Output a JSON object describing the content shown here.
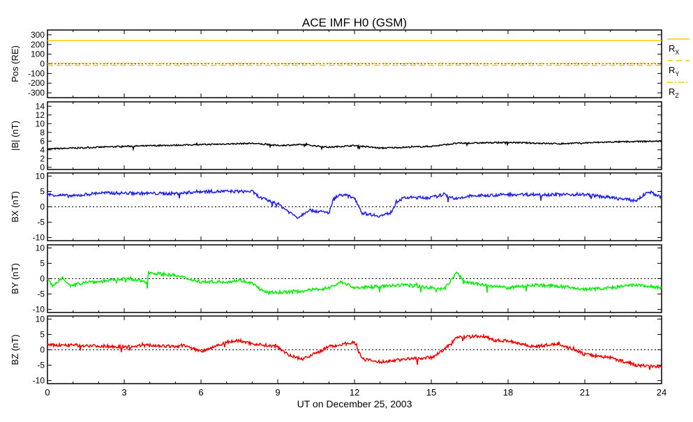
{
  "chart_data": [
    {
      "type": "line",
      "title": "ACE IMF H0 (GSM)",
      "xlabel": "UT on December 25, 2003",
      "ylabel": "Pos (RE)",
      "ylim": [
        -350,
        350
      ],
      "yticks": [
        300,
        200,
        100,
        0,
        -100,
        -200,
        -300
      ],
      "series": [
        {
          "name": "RX",
          "color": "#ffcc00",
          "style": "solid",
          "knots": [
            [
              0,
              240
            ],
            [
              24,
              240
            ]
          ]
        },
        {
          "name": "RY",
          "color": "#ffcc00",
          "style": "dashed",
          "knots": [
            [
              0,
              -15
            ],
            [
              24,
              -15
            ]
          ]
        },
        {
          "name": "RZ",
          "color": "#ffcc00",
          "style": "dashdot",
          "knots": [
            [
              0,
              5
            ],
            [
              24,
              5
            ]
          ]
        }
      ]
    },
    {
      "type": "line",
      "ylabel": "|B| (nT)",
      "ylim": [
        -0.5,
        15
      ],
      "yticks": [
        14,
        12,
        10,
        8,
        6,
        4,
        2,
        0
      ],
      "zero_line": false,
      "series": [
        {
          "name": "|B|",
          "color": "#000000",
          "knots": [
            [
              0,
              4.2
            ],
            [
              3,
              4.8
            ],
            [
              6,
              5.2
            ],
            [
              8,
              5.5
            ],
            [
              9,
              5
            ],
            [
              10,
              5.2
            ],
            [
              11,
              4.6
            ],
            [
              12,
              5
            ],
            [
              13,
              4.4
            ],
            [
              15,
              4.8
            ],
            [
              16,
              5.5
            ],
            [
              18,
              5.7
            ],
            [
              20,
              5.4
            ],
            [
              22,
              5.8
            ],
            [
              24,
              6
            ]
          ]
        }
      ]
    },
    {
      "type": "line",
      "ylabel": "BX (nT)",
      "ylim": [
        -11,
        11
      ],
      "yticks": [
        10,
        5,
        0,
        -5,
        -10
      ],
      "zero_line": true,
      "series": [
        {
          "name": "BX",
          "color": "#2020ee",
          "knots": [
            [
              0,
              4
            ],
            [
              1,
              3.5
            ],
            [
              2,
              4.5
            ],
            [
              5,
              4.3
            ],
            [
              6,
              5
            ],
            [
              8,
              5
            ],
            [
              8.3,
              3
            ],
            [
              9,
              1
            ],
            [
              9.5,
              -2
            ],
            [
              9.8,
              -3.5
            ],
            [
              10.2,
              -1
            ],
            [
              11,
              -2
            ],
            [
              11.2,
              3
            ],
            [
              11.5,
              4
            ],
            [
              12,
              3
            ],
            [
              12.3,
              -2
            ],
            [
              13,
              -3
            ],
            [
              13.4,
              -2
            ],
            [
              13.7,
              2
            ],
            [
              14,
              3
            ],
            [
              15,
              3
            ],
            [
              15.5,
              4
            ],
            [
              16,
              2.5
            ],
            [
              16.5,
              3.5
            ],
            [
              18,
              4
            ],
            [
              21,
              4
            ],
            [
              23,
              2
            ],
            [
              23.5,
              5
            ],
            [
              24,
              3
            ]
          ]
        }
      ]
    },
    {
      "type": "line",
      "ylabel": "BY (nT)",
      "ylim": [
        -11,
        11
      ],
      "yticks": [
        10,
        5,
        0,
        -5,
        -10
      ],
      "zero_line": true,
      "series": [
        {
          "name": "BY",
          "color": "#00ee00",
          "knots": [
            [
              0,
              0
            ],
            [
              0.2,
              -2.5
            ],
            [
              0.6,
              0.5
            ],
            [
              0.9,
              -2.5
            ],
            [
              1.5,
              -1
            ],
            [
              2,
              -1
            ],
            [
              3,
              0
            ],
            [
              3.9,
              -1
            ],
            [
              3.95,
              2
            ],
            [
              5,
              1
            ],
            [
              6,
              -1
            ],
            [
              7,
              -1
            ],
            [
              7.5,
              -0.5
            ],
            [
              8,
              -1.5
            ],
            [
              8.5,
              -4.5
            ],
            [
              9,
              -4.5
            ],
            [
              10,
              -4
            ],
            [
              11,
              -3
            ],
            [
              11.5,
              -1
            ],
            [
              12,
              -3
            ],
            [
              13,
              -2.5
            ],
            [
              14,
              -2
            ],
            [
              15,
              -3
            ],
            [
              15.5,
              -3.5
            ],
            [
              16,
              2
            ],
            [
              16.3,
              -1
            ],
            [
              17,
              -2
            ],
            [
              18,
              -3
            ],
            [
              19,
              -2
            ],
            [
              20,
              -2.5
            ],
            [
              21,
              -3.5
            ],
            [
              22,
              -3
            ],
            [
              23,
              -2
            ],
            [
              24,
              -3
            ]
          ]
        }
      ]
    },
    {
      "type": "line",
      "ylabel": "BZ (nT)",
      "ylim": [
        -11,
        11
      ],
      "yticks": [
        10,
        5,
        0,
        -5,
        -10
      ],
      "zero_line": true,
      "series": [
        {
          "name": "BZ",
          "color": "#ee0000",
          "knots": [
            [
              0,
              1.5
            ],
            [
              1,
              1.5
            ],
            [
              3,
              1
            ],
            [
              4,
              1.5
            ],
            [
              5,
              1
            ],
            [
              5.3,
              1.5
            ],
            [
              6,
              -0.5
            ],
            [
              7,
              2.5
            ],
            [
              7.5,
              3
            ],
            [
              8,
              2
            ],
            [
              9,
              1
            ],
            [
              9.5,
              -2
            ],
            [
              10,
              -3
            ],
            [
              11,
              1
            ],
            [
              12,
              2.5
            ],
            [
              12.3,
              -3
            ],
            [
              13,
              -4
            ],
            [
              14,
              -3
            ],
            [
              15,
              -2.5
            ],
            [
              15.5,
              0
            ],
            [
              16,
              4
            ],
            [
              17,
              4.5
            ],
            [
              17.5,
              3
            ],
            [
              18,
              3
            ],
            [
              19,
              1
            ],
            [
              20,
              2
            ],
            [
              21,
              -1.5
            ],
            [
              22,
              -2.5
            ],
            [
              23,
              -5
            ],
            [
              24,
              -5.5
            ]
          ]
        }
      ]
    }
  ],
  "xaxis": {
    "range": [
      0,
      24
    ],
    "ticks": [
      "0",
      "3",
      "6",
      "9",
      "12",
      "15",
      "18",
      "21",
      "24"
    ]
  },
  "legend": [
    "RX",
    "RY",
    "RZ"
  ]
}
